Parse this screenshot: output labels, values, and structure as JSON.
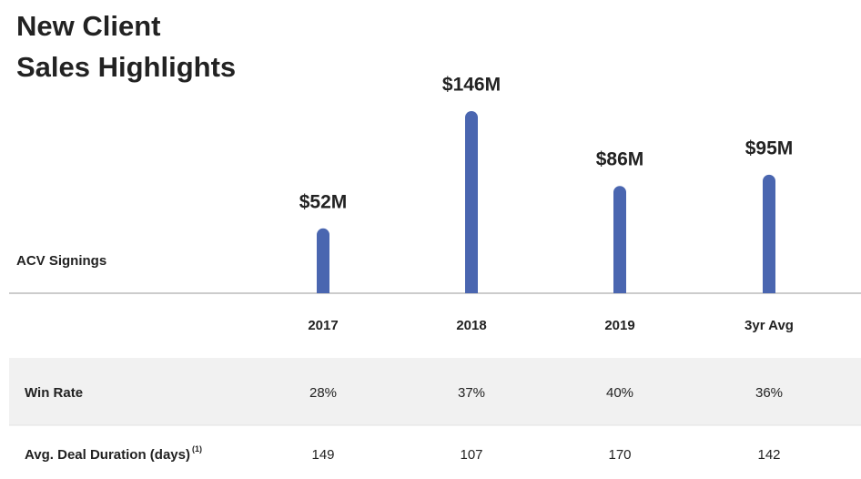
{
  "chart_data": {
    "type": "bar",
    "title": [
      "New Client",
      "Sales Highlights"
    ],
    "y_label": "ACV Signings",
    "categories": [
      "2017",
      "2018",
      "2019",
      "3yr Avg"
    ],
    "values": [
      52,
      146,
      86,
      95
    ],
    "value_labels": [
      "$52M",
      "$146M",
      "$86M",
      "$95M"
    ],
    "color": "#4a66b0",
    "ylim": [
      0,
      146
    ]
  },
  "table": {
    "rows": [
      {
        "label": "Win Rate",
        "cells": [
          "28%",
          "37%",
          "40%",
          "36%"
        ]
      },
      {
        "label": "Avg. Deal Duration (days)",
        "note": "(1)",
        "cells": [
          "149",
          "107",
          "170",
          "142"
        ]
      }
    ]
  }
}
